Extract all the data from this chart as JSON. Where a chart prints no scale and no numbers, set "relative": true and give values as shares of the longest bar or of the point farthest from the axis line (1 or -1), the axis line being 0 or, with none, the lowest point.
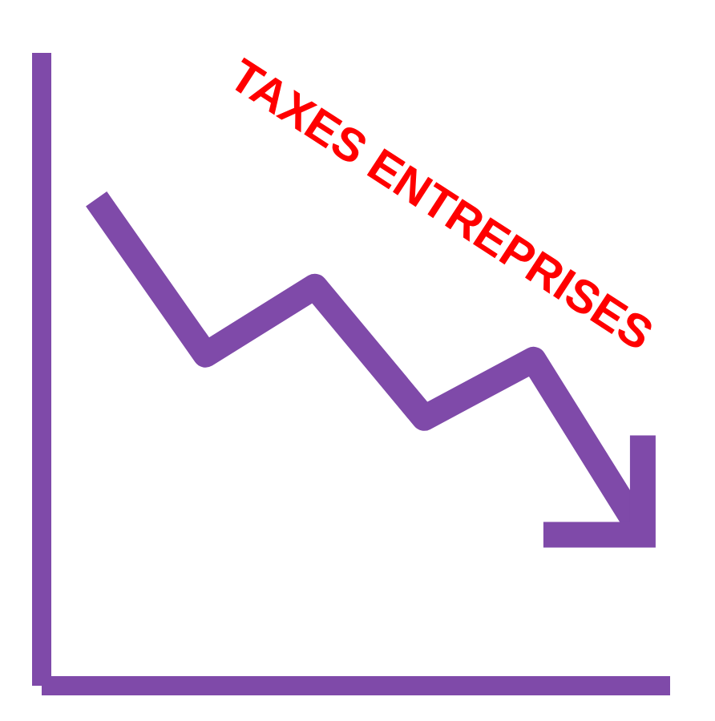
{
  "chart_data": {
    "type": "line",
    "title": "TAXES ENTREPRISES",
    "relative": true,
    "categories": [
      null,
      null,
      null,
      null,
      null,
      null
    ],
    "series": [
      {
        "color": "#7f4aa9",
        "values": [
          1,
          0.68,
          0.82,
          0.55,
          0.67,
          0.31
        ]
      }
    ],
    "marker": "none",
    "line_style": "solid"
  }
}
